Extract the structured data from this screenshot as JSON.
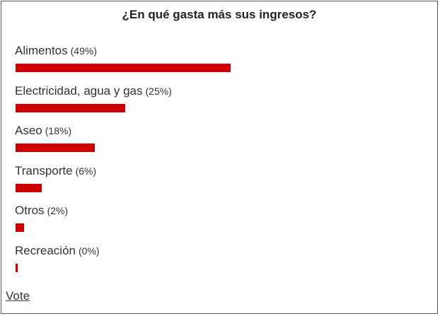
{
  "poll": {
    "title": "¿En qué gasta más sus ingresos?",
    "vote_label": "Vote",
    "bar_color": "#cc0000"
  },
  "chart_data": {
    "type": "bar",
    "orientation": "horizontal",
    "title": "¿En qué gasta más sus ingresos?",
    "categories": [
      "Alimentos",
      "Electricidad, agua y gas",
      "Aseo",
      "Transporte",
      "Otros",
      "Recreación"
    ],
    "values": [
      49,
      25,
      18,
      6,
      2,
      0
    ],
    "value_labels": [
      "(49%)",
      "(25%)",
      "(18%)",
      "(6%)",
      "(2%)",
      "(0%)"
    ],
    "unit": "%",
    "xlim": [
      0,
      100
    ],
    "grid": false,
    "legend": "none"
  }
}
